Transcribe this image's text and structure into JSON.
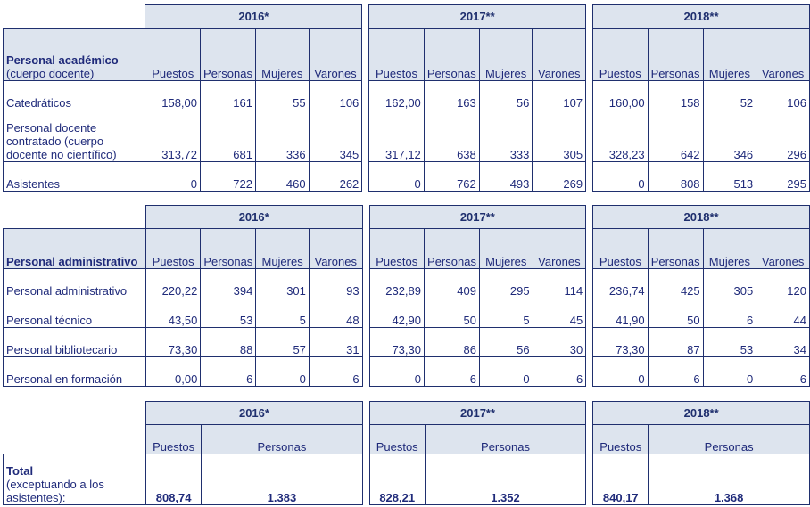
{
  "years": [
    "2016*",
    "2017**",
    "2018**"
  ],
  "columns": [
    "Puestos",
    "Personas",
    "Mujeres",
    "Varones"
  ],
  "academic": {
    "title": "Personal académico",
    "subtitle": "(cuerpo docente)",
    "rows": [
      {
        "label": "Catedráticos",
        "values": [
          "158,00",
          "161",
          "55",
          "106",
          "162,00",
          "163",
          "56",
          "107",
          "160,00",
          "158",
          "52",
          "106"
        ]
      },
      {
        "label": "Personal docente contratado (cuerpo docente no científico)",
        "values": [
          "313,72",
          "681",
          "336",
          "345",
          "317,12",
          "638",
          "333",
          "305",
          "328,23",
          "642",
          "346",
          "296"
        ]
      },
      {
        "label": "Asistentes",
        "values": [
          "0",
          "722",
          "460",
          "262",
          "0",
          "762",
          "493",
          "269",
          "0",
          "808",
          "513",
          "295"
        ]
      }
    ]
  },
  "administrative": {
    "title": "Personal administrativo",
    "rows": [
      {
        "label": "Personal administrativo",
        "values": [
          "220,22",
          "394",
          "301",
          "93",
          "232,89",
          "409",
          "295",
          "114",
          "236,74",
          "425",
          "305",
          "120"
        ]
      },
      {
        "label": "Personal técnico",
        "values": [
          "43,50",
          "53",
          "5",
          "48",
          "42,90",
          "50",
          "5",
          "45",
          "41,90",
          "50",
          "6",
          "44"
        ]
      },
      {
        "label": "Personal bibliotecario",
        "values": [
          "73,30",
          "88",
          "57",
          "31",
          "73,30",
          "86",
          "56",
          "30",
          "73,30",
          "87",
          "53",
          "34"
        ]
      },
      {
        "label": "Personal en formación",
        "values": [
          "0,00",
          "6",
          "0",
          "6",
          "0",
          "6",
          "0",
          "6",
          "0",
          "6",
          "0",
          "6"
        ]
      }
    ]
  },
  "total": {
    "title": "Total",
    "subtitle": "(exceptuando a los asistentes):",
    "columns": [
      "Puestos",
      "Personas"
    ],
    "values": [
      "808,74",
      "1.383",
      "828,21",
      "1.352",
      "840,17",
      "1.368"
    ]
  }
}
